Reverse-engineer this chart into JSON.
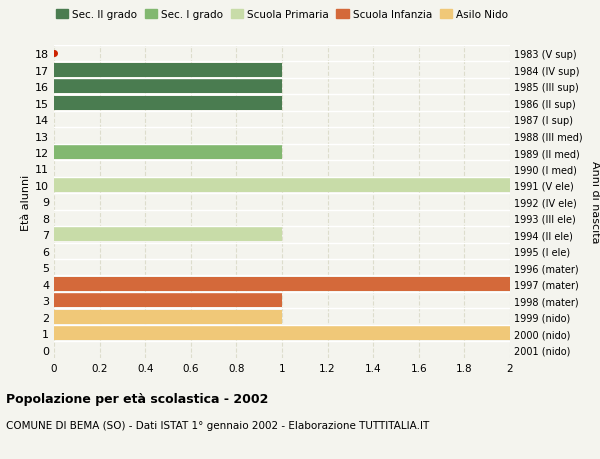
{
  "ages": [
    0,
    1,
    2,
    3,
    4,
    5,
    6,
    7,
    8,
    9,
    10,
    11,
    12,
    13,
    14,
    15,
    16,
    17,
    18
  ],
  "right_labels": [
    "2001 (nido)",
    "2000 (nido)",
    "1999 (nido)",
    "1998 (mater)",
    "1997 (mater)",
    "1996 (mater)",
    "1995 (I ele)",
    "1994 (II ele)",
    "1993 (III ele)",
    "1992 (IV ele)",
    "1991 (V ele)",
    "1990 (I med)",
    "1989 (II med)",
    "1988 (III med)",
    "1987 (I sup)",
    "1986 (II sup)",
    "1985 (III sup)",
    "1984 (IV sup)",
    "1983 (V sup)"
  ],
  "values": [
    0,
    2.0,
    1.0,
    1.0,
    2.0,
    0,
    0,
    1.0,
    0,
    0,
    2.0,
    0,
    1.0,
    0,
    0,
    1.0,
    1.0,
    1.0,
    0
  ],
  "bar_colors_by_age": {
    "0": "#f0c878",
    "1": "#f0c878",
    "2": "#f0c878",
    "3": "#d4693a",
    "4": "#d4693a",
    "5": "#d4693a",
    "6": "#c8dca8",
    "7": "#c8dca8",
    "8": "#c8dca8",
    "9": "#c8dca8",
    "10": "#c8dca8",
    "11": "#82b870",
    "12": "#82b870",
    "13": "#82b870",
    "14": "#4a7c50",
    "15": "#4a7c50",
    "16": "#4a7c50",
    "17": "#4a7c50",
    "18": "#4a7c50"
  },
  "dot_color": "#cc2200",
  "dot_age": 18,
  "xlim": [
    0,
    2.0
  ],
  "ylim": [
    -0.5,
    18.5
  ],
  "xticks": [
    0,
    0.2,
    0.4,
    0.6,
    0.8,
    1.0,
    1.2,
    1.4,
    1.6,
    1.8,
    2.0
  ],
  "yticks": [
    0,
    1,
    2,
    3,
    4,
    5,
    6,
    7,
    8,
    9,
    10,
    11,
    12,
    13,
    14,
    15,
    16,
    17,
    18
  ],
  "ylabel": "Età alunni",
  "right_ylabel": "Anni di nascita",
  "title": "Popolazione per età scolastica - 2002",
  "subtitle": "COMUNE DI BEMA (SO) - Dati ISTAT 1° gennaio 2002 - Elaborazione TUTTITALIA.IT",
  "legend_order": [
    "Sec. II grado",
    "Sec. I grado",
    "Scuola Primaria",
    "Scuola Infanzia",
    "Asilo Nido"
  ],
  "legend_colors": [
    "#4a7c50",
    "#82b870",
    "#c8dca8",
    "#d4693a",
    "#f0c878"
  ],
  "bg_color": "#f4f4ee",
  "bar_height": 0.85,
  "grid_color": "#ddddcc",
  "grid_style": "--"
}
